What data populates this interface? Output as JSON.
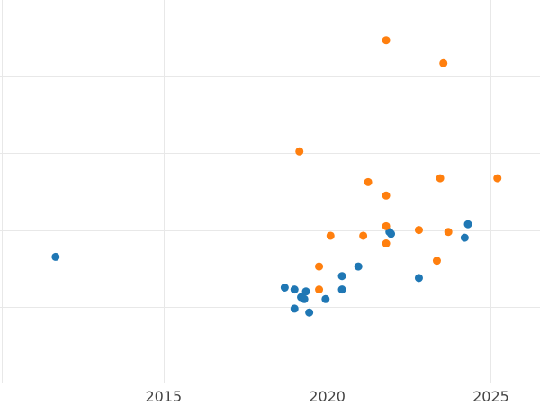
{
  "chart_data": {
    "type": "scatter",
    "title": "",
    "xlabel": "",
    "ylabel": "",
    "xlim": [
      2010.0,
      2026.5
    ],
    "ylim": [
      0.0,
      10.0
    ],
    "grid": true,
    "x_ticks": [
      2015,
      2020,
      2025
    ],
    "x_tick_labels": [
      "2015",
      "2020",
      "2025"
    ],
    "y_gridlines": [
      2,
      4,
      6,
      8
    ],
    "series": [
      {
        "color": "#1f77b4",
        "points": [
          {
            "x": 2011.7,
            "y": 3.3
          },
          {
            "x": 2018.7,
            "y": 2.5
          },
          {
            "x": 2019.0,
            "y": 2.45
          },
          {
            "x": 2019.35,
            "y": 2.4
          },
          {
            "x": 2019.2,
            "y": 2.25
          },
          {
            "x": 2019.3,
            "y": 2.2
          },
          {
            "x": 2019.95,
            "y": 2.2
          },
          {
            "x": 2019.0,
            "y": 1.95
          },
          {
            "x": 2019.45,
            "y": 1.85
          },
          {
            "x": 2020.45,
            "y": 2.8
          },
          {
            "x": 2020.45,
            "y": 2.45
          },
          {
            "x": 2020.95,
            "y": 3.05
          },
          {
            "x": 2021.9,
            "y": 3.95
          },
          {
            "x": 2021.95,
            "y": 3.9
          },
          {
            "x": 2022.8,
            "y": 2.75
          },
          {
            "x": 2024.2,
            "y": 3.8
          },
          {
            "x": 2024.3,
            "y": 4.15
          }
        ]
      },
      {
        "color": "#ff7f0e",
        "points": [
          {
            "x": 2021.8,
            "y": 8.95
          },
          {
            "x": 2023.55,
            "y": 8.35
          },
          {
            "x": 2019.15,
            "y": 6.05
          },
          {
            "x": 2021.25,
            "y": 5.25
          },
          {
            "x": 2023.45,
            "y": 5.35
          },
          {
            "x": 2025.2,
            "y": 5.35
          },
          {
            "x": 2021.8,
            "y": 4.9
          },
          {
            "x": 2021.8,
            "y": 4.1
          },
          {
            "x": 2020.1,
            "y": 3.85
          },
          {
            "x": 2021.1,
            "y": 3.85
          },
          {
            "x": 2022.8,
            "y": 4.0
          },
          {
            "x": 2023.7,
            "y": 3.95
          },
          {
            "x": 2021.8,
            "y": 3.65
          },
          {
            "x": 2019.75,
            "y": 3.05
          },
          {
            "x": 2023.35,
            "y": 3.2
          },
          {
            "x": 2019.75,
            "y": 2.45
          }
        ]
      }
    ]
  }
}
